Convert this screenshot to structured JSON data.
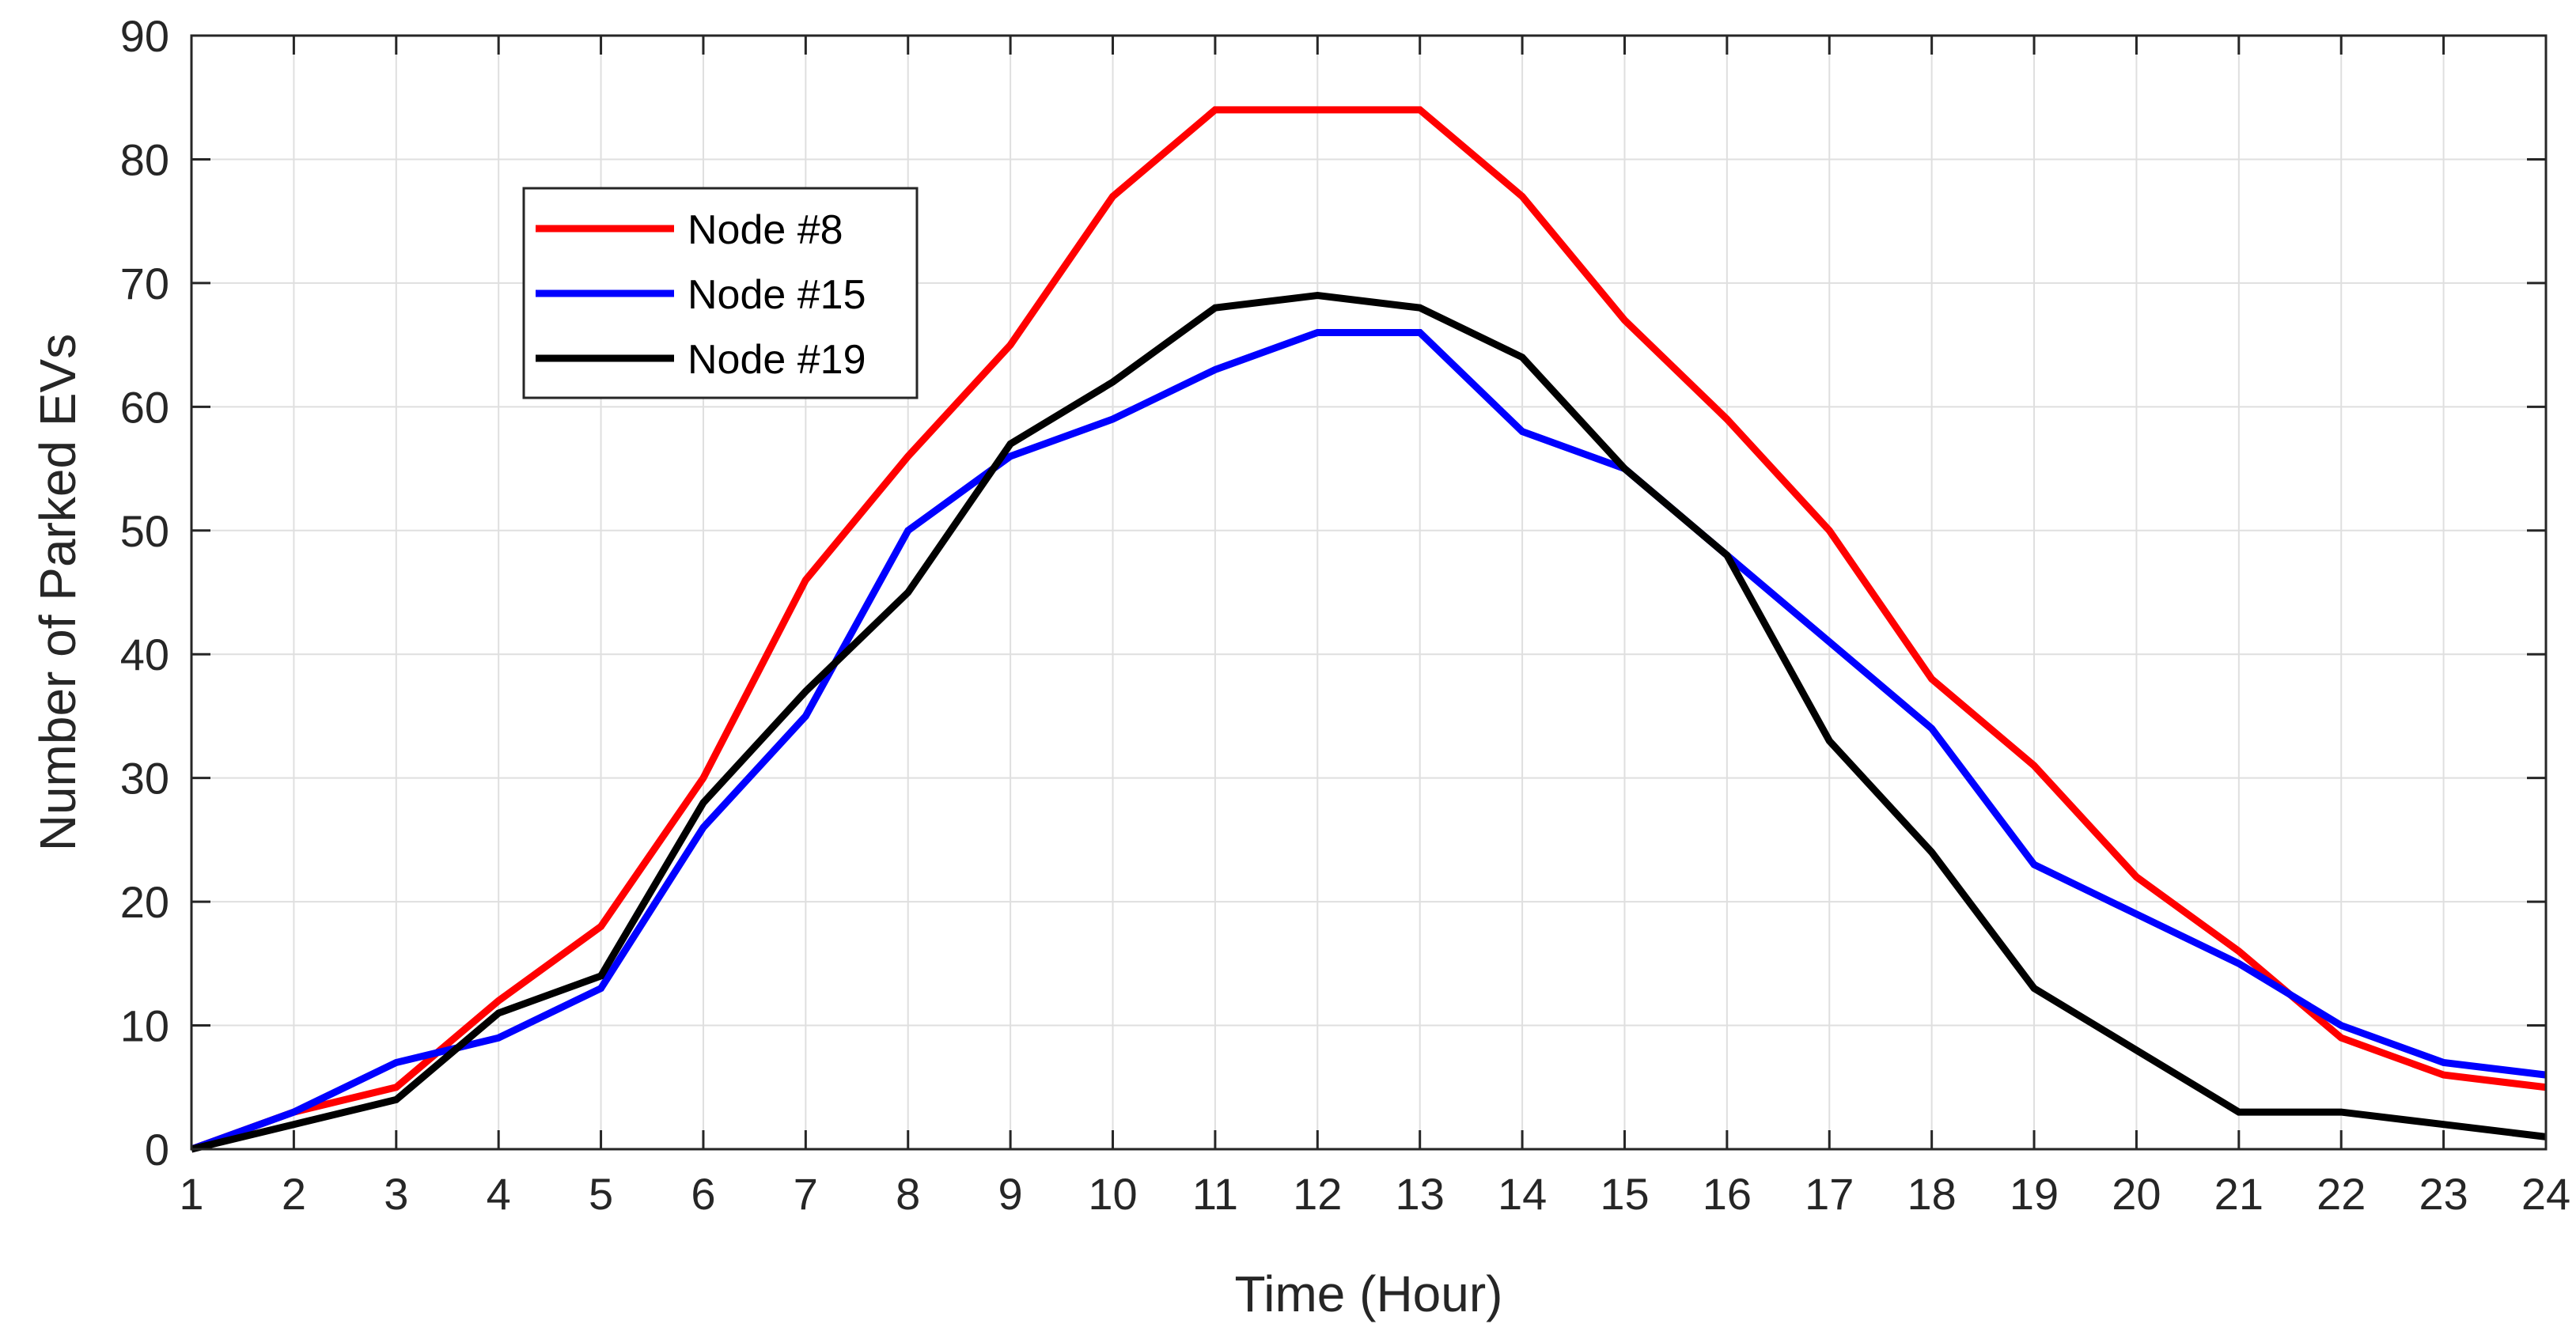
{
  "chart_data": {
    "type": "line",
    "title": "",
    "xlabel": "Time (Hour)",
    "ylabel": "Number of Parked EVs",
    "x": [
      1,
      2,
      3,
      4,
      5,
      6,
      7,
      8,
      9,
      10,
      11,
      12,
      13,
      14,
      15,
      16,
      17,
      18,
      19,
      20,
      21,
      22,
      23,
      24
    ],
    "xlim": [
      1,
      24
    ],
    "ylim": [
      0,
      90
    ],
    "xticks": [
      "1",
      "2",
      "3",
      "4",
      "5",
      "6",
      "7",
      "8",
      "9",
      "10",
      "11",
      "12",
      "13",
      "14",
      "15",
      "16",
      "17",
      "18",
      "19",
      "20",
      "21",
      "22",
      "23",
      "24"
    ],
    "yticks": [
      "0",
      "10",
      "20",
      "30",
      "40",
      "50",
      "60",
      "70",
      "80",
      "90"
    ],
    "grid": true,
    "legend_position": "upper-left",
    "series": [
      {
        "name": "Node #8",
        "color": "#ff0000",
        "values": [
          0,
          3,
          5,
          12,
          18,
          30,
          46,
          56,
          65,
          77,
          84,
          84,
          84,
          77,
          67,
          59,
          50,
          38,
          31,
          22,
          16,
          9,
          6,
          5
        ]
      },
      {
        "name": "Node #15",
        "color": "#0000ff",
        "values": [
          0,
          3,
          7,
          9,
          13,
          26,
          35,
          50,
          56,
          59,
          63,
          66,
          66,
          58,
          55,
          48,
          41,
          34,
          23,
          19,
          15,
          10,
          7,
          6
        ]
      },
      {
        "name": "Node #19",
        "color": "#000000",
        "values": [
          0,
          2,
          4,
          11,
          14,
          28,
          37,
          45,
          57,
          62,
          68,
          69,
          68,
          64,
          55,
          48,
          33,
          24,
          13,
          8,
          3,
          3,
          2,
          1
        ]
      }
    ]
  }
}
